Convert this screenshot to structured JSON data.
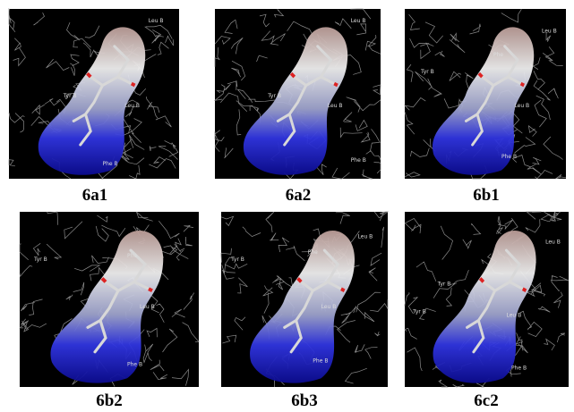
{
  "panels": [
    {
      "label": "6a1",
      "residues": [
        "Leu B",
        "Tyr B",
        "Leu B",
        "Phe B"
      ]
    },
    {
      "label": "6a2",
      "residues": [
        "Leu B",
        "Tyr B",
        "Leu B",
        "Phe B"
      ]
    },
    {
      "label": "6b1",
      "residues": [
        "Leu B",
        "Phe",
        "Tyr B",
        "Leu B",
        "Phe B"
      ]
    },
    {
      "label": "6b2",
      "residues": [
        "Phe",
        "Tyr B",
        "Leu B",
        "Phe B"
      ]
    },
    {
      "label": "6b3",
      "residues": [
        "Leu B",
        "Phe",
        "Tyr B",
        "Leu B",
        "Phe B"
      ]
    },
    {
      "label": "6c2",
      "residues": [
        "Leu B",
        "Tyr B",
        "Tyr B",
        "Leu B",
        "Phe B"
      ]
    }
  ]
}
